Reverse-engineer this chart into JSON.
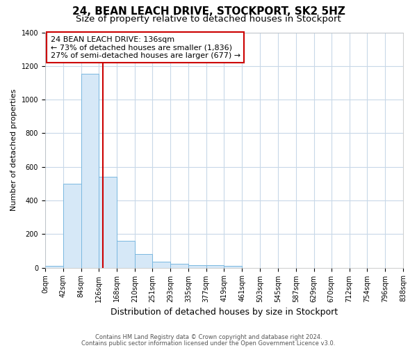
{
  "title": "24, BEAN LEACH DRIVE, STOCKPORT, SK2 5HZ",
  "subtitle": "Size of property relative to detached houses in Stockport",
  "xlabel": "Distribution of detached houses by size in Stockport",
  "ylabel": "Number of detached properties",
  "footnote1": "Contains HM Land Registry data © Crown copyright and database right 2024.",
  "footnote2": "Contains public sector information licensed under the Open Government Licence v3.0.",
  "bin_edges": [
    0,
    42,
    84,
    126,
    168,
    210,
    251,
    293,
    335,
    377,
    419,
    461,
    503,
    545,
    587,
    629,
    670,
    712,
    754,
    796,
    838
  ],
  "bar_heights": [
    10,
    500,
    1155,
    540,
    160,
    83,
    35,
    22,
    15,
    15,
    10,
    0,
    0,
    0,
    0,
    0,
    0,
    0,
    0,
    0
  ],
  "bar_facecolor": "#d6e8f7",
  "bar_edgecolor": "#7ab8e0",
  "red_line_x": 136,
  "annotation_line1": "24 BEAN LEACH DRIVE: 136sqm",
  "annotation_line2": "← 73% of detached houses are smaller (1,836)",
  "annotation_line3": "27% of semi-detached houses are larger (677) →",
  "annotation_box_color": "#ffffff",
  "annotation_box_edgecolor": "#cc0000",
  "red_line_color": "#cc0000",
  "ylim": [
    0,
    1400
  ],
  "xlim": [
    0,
    838
  ],
  "background_color": "#ffffff",
  "plot_background": "#ffffff",
  "grid_color": "#c8d8e8",
  "title_fontsize": 11,
  "subtitle_fontsize": 9.5,
  "xlabel_fontsize": 9,
  "ylabel_fontsize": 8,
  "tick_fontsize": 7,
  "annotation_fontsize": 8,
  "footnote_fontsize": 6
}
